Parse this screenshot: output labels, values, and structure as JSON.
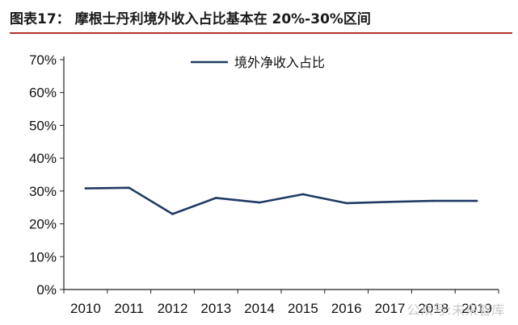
{
  "figure": {
    "title": "图表17： 摩根士丹利境外收入占比基本在 20%-30%区间",
    "accent_color": "#b2312b"
  },
  "watermark": "公众号:未来智库",
  "chart_data": {
    "type": "line",
    "title": "",
    "xlabel": "",
    "ylabel": "",
    "categories": [
      "2010",
      "2011",
      "2012",
      "2013",
      "2014",
      "2015",
      "2016",
      "2017",
      "2018",
      "2019"
    ],
    "y_ticks": [
      "0%",
      "10%",
      "20%",
      "30%",
      "40%",
      "50%",
      "60%",
      "70%"
    ],
    "ylim": [
      0,
      70
    ],
    "grid": false,
    "legend_position": "top-center",
    "series": [
      {
        "name": "境外净收入占比",
        "color": "#1f3a63",
        "values": [
          30.8,
          31.0,
          23.0,
          27.9,
          26.5,
          29.0,
          26.3,
          26.7,
          27.0,
          27.0
        ]
      }
    ]
  }
}
